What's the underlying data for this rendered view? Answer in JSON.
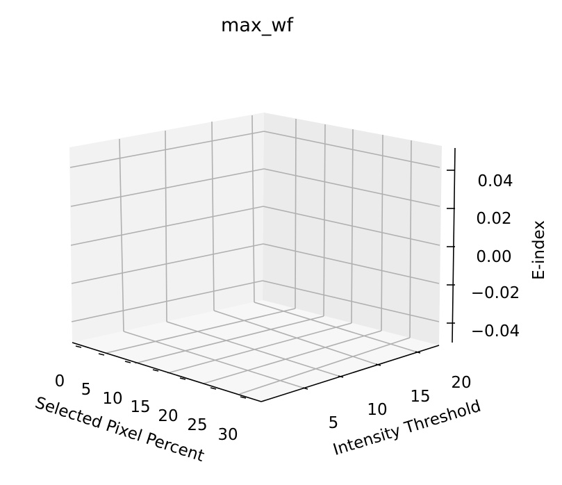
{
  "chart_data": {
    "type": "surface",
    "title": "max_wf",
    "xlabel": "Selected Pixel Percent",
    "ylabel": "Intensity Threshold",
    "zlabel": "E-index",
    "x_ticks": [
      "0",
      "5",
      "10",
      "15",
      "20",
      "25",
      "30"
    ],
    "y_ticks": [
      "5",
      "10",
      "15",
      "20"
    ],
    "z_ticks": [
      "−0.04",
      "−0.02",
      "0.00",
      "0.02",
      "0.04"
    ],
    "series": [],
    "grid": true,
    "colors": {
      "pane_left": "#f2f2f2",
      "pane_right": "#ebebeb",
      "pane_floor": "#f7f7f7",
      "grid": "#b0b0b0"
    }
  }
}
